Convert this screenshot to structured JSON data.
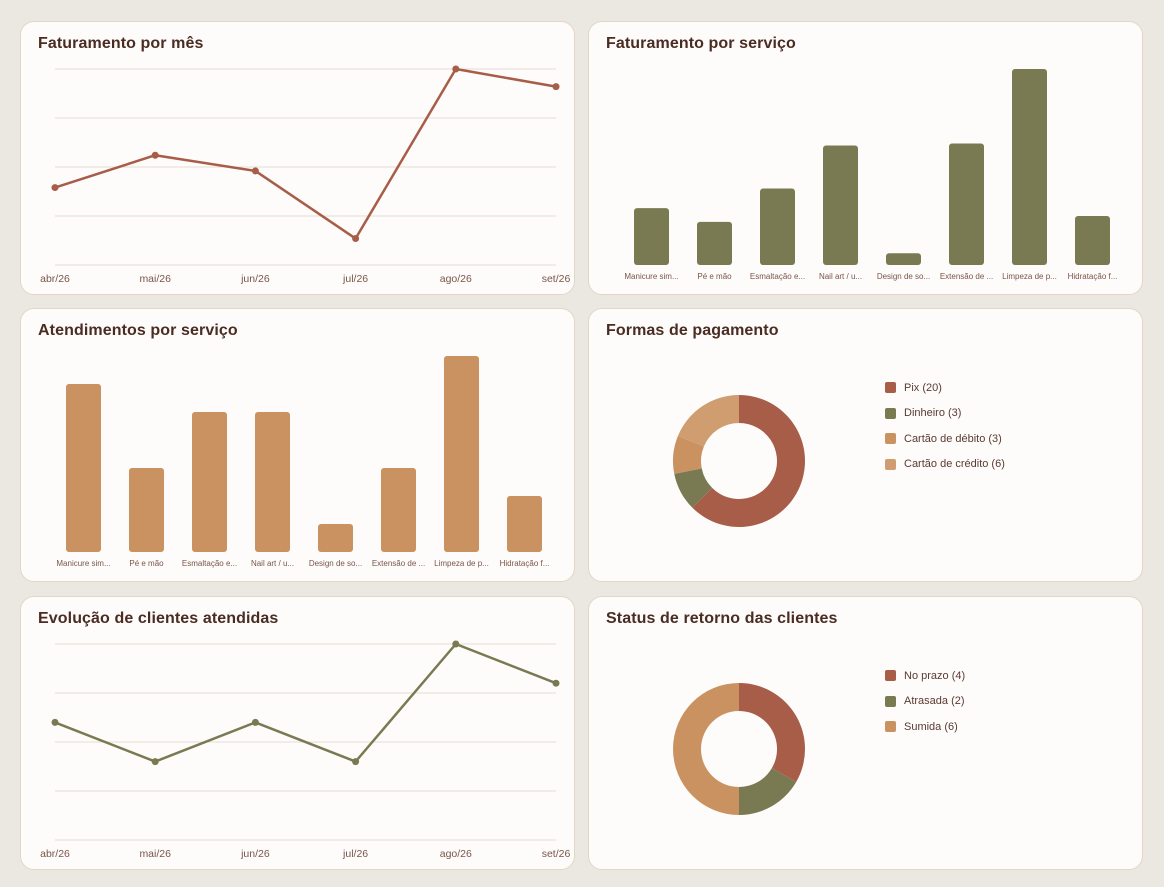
{
  "colors": {
    "terracotta": "#a85d48",
    "olive": "#7a7a52",
    "caramel": "#c99260",
    "sand": "#d09d70",
    "grid": "#e5dccf",
    "tick_text": "#7a5548"
  },
  "cards": {
    "revenue_month": {
      "title": "Faturamento por mês"
    },
    "revenue_service": {
      "title": "Faturamento por serviço"
    },
    "appointments_service": {
      "title": "Atendimentos por serviço"
    },
    "payment_methods": {
      "title": "Formas de pagamento"
    },
    "clients_evolution": {
      "title": "Evolução de clientes atendidas"
    },
    "return_status": {
      "title": "Status de retorno das clientes"
    }
  },
  "chart_data": [
    {
      "id": "revenue_month",
      "type": "line",
      "title": "Faturamento por mês",
      "x": [
        "abr/26",
        "mai/26",
        "jun/26",
        "jul/26",
        "ago/26",
        "set/26"
      ],
      "values": [
        395,
        560,
        480,
        135,
        1000,
        910
      ],
      "ylim": [
        0,
        1000
      ],
      "grid": true,
      "color": "#a85d48"
    },
    {
      "id": "revenue_service",
      "type": "bar",
      "title": "Faturamento por serviço",
      "categories": [
        "Manicure sim...",
        "Pé e mão",
        "Esmaltação e...",
        "Nail art / u...",
        "Design de so...",
        "Extensão de ...",
        "Limpeza de p...",
        "Hidratação f..."
      ],
      "values": [
        29,
        22,
        39,
        61,
        6,
        62,
        100,
        25
      ],
      "ylim": [
        0,
        100
      ],
      "grid": false,
      "color": "#7a7a52"
    },
    {
      "id": "appointments_service",
      "type": "bar",
      "title": "Atendimentos por serviço",
      "categories": [
        "Manicure sim...",
        "Pé e mão",
        "Esmaltação e...",
        "Nail art / u...",
        "Design de so...",
        "Extensão de ...",
        "Limpeza de p...",
        "Hidratação f..."
      ],
      "values": [
        6,
        3,
        5,
        5,
        1,
        3,
        7,
        2
      ],
      "ylim": [
        0,
        7
      ],
      "grid": false,
      "color": "#c99260"
    },
    {
      "id": "payment_methods",
      "type": "pie",
      "title": "Formas de pagamento",
      "donut": true,
      "legend_position": "right",
      "slices": [
        {
          "label": "Pix (20)",
          "value": 20,
          "color": "#a85d48"
        },
        {
          "label": "Dinheiro (3)",
          "value": 3,
          "color": "#7a7a52"
        },
        {
          "label": "Cartão de débito (3)",
          "value": 3,
          "color": "#c99260"
        },
        {
          "label": "Cartão de crédito (6)",
          "value": 6,
          "color": "#d09d70"
        }
      ]
    },
    {
      "id": "clients_evolution",
      "type": "line",
      "title": "Evolução de clientes atendidas",
      "x": [
        "abr/26",
        "mai/26",
        "jun/26",
        "jul/26",
        "ago/26",
        "set/26"
      ],
      "values": [
        6,
        4,
        6,
        4,
        10,
        8
      ],
      "ylim": [
        0,
        10
      ],
      "grid": true,
      "color": "#7a7a52"
    },
    {
      "id": "return_status",
      "type": "pie",
      "title": "Status de retorno das clientes",
      "donut": true,
      "legend_position": "right",
      "slices": [
        {
          "label": "No prazo (4)",
          "value": 4,
          "color": "#a85d48"
        },
        {
          "label": "Atrasada (2)",
          "value": 2,
          "color": "#7a7a52"
        },
        {
          "label": "Sumida (6)",
          "value": 6,
          "color": "#c99260"
        }
      ]
    }
  ]
}
